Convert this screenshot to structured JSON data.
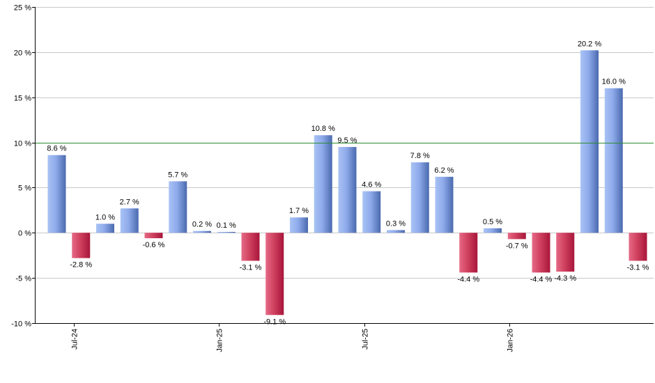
{
  "chart_data": {
    "type": "bar",
    "title": "",
    "xlabel": "",
    "ylabel": "",
    "ylim": [
      -10,
      25
    ],
    "y_ticks": [
      -10,
      -5,
      0,
      5,
      10,
      15,
      20,
      25
    ],
    "y_tick_suffix": " %",
    "grid": true,
    "reference_line": 10,
    "x_tick_labels": [
      "Jul-24",
      "Jan-25",
      "Jul-25",
      "Jan-26"
    ],
    "x_tick_positions": [
      1,
      7,
      13,
      19
    ],
    "values": [
      8.6,
      -2.8,
      1.0,
      2.7,
      -0.6,
      5.7,
      0.2,
      0.1,
      -3.1,
      -9.1,
      1.7,
      10.8,
      9.5,
      4.6,
      0.3,
      7.8,
      6.2,
      -4.4,
      0.5,
      -0.7,
      -4.4,
      -4.3,
      20.2,
      16.0,
      -3.1
    ],
    "data_labels": [
      "8.6 %",
      "-2.8 %",
      "1.0 %",
      "2.7 %",
      "-0.6 %",
      "5.7 %",
      "0.2 %",
      "0.1 %",
      "-3.1 %",
      "-9.1 %",
      "1.7 %",
      "10.8 %",
      "9.5 %",
      "4.6 %",
      "0.3 %",
      "7.8 %",
      "6.2 %",
      "-4.4 %",
      "0.5 %",
      "-0.7 %",
      "-4.4 %",
      "-4.3 %",
      "20.2 %",
      "16.0 %",
      "-3.1 %"
    ],
    "colors": {
      "positive_light": "#a9c3f5",
      "positive_dark": "#4a6aae",
      "negative_light": "#e66a86",
      "negative_dark": "#a8163a",
      "grid": "#c8c8c8",
      "axis": "#000000",
      "reference_line": "#2e8b2e"
    }
  }
}
